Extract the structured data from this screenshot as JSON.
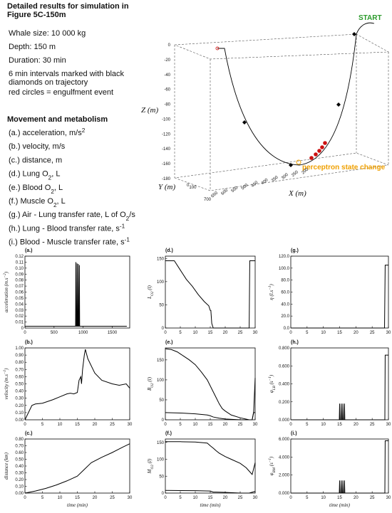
{
  "header": {
    "title_lines": [
      "Detailed results for simulation in",
      "Figure 5C-150m"
    ]
  },
  "info_lines": [
    "Whale size: 10 000 kg",
    "Depth: 150 m",
    "Duration: 30 min",
    "6 min intervals marked with black",
    "diamonds on trajectory",
    "red circles = engulfment event"
  ],
  "legend": {
    "heading": "Movement and metabolism",
    "items": [
      [
        {
          "t": "(a.) acceleration, m/s"
        },
        {
          "t": "2",
          "s": "sup"
        }
      ],
      [
        {
          "t": "(b.) velocity, m/s"
        }
      ],
      [
        {
          "t": "(c.) distance, m"
        }
      ],
      [
        {
          "t": "(d.) Lung O"
        },
        {
          "t": "2",
          "s": "sub"
        },
        {
          "t": ", L"
        }
      ],
      [
        {
          "t": "(e.) Blood O"
        },
        {
          "t": "2",
          "s": "sub"
        },
        {
          "t": ", L"
        }
      ],
      [
        {
          "t": "(f.) Muscle O"
        },
        {
          "t": "2",
          "s": "sub"
        },
        {
          "t": ", L"
        }
      ],
      [
        {
          "t": "(g.) Air - Lung transfer rate, L of O"
        },
        {
          "t": "2",
          "s": "sub"
        },
        {
          "t": "/s"
        }
      ],
      [
        {
          "t": "(h.) Lung - Blood transfer rate, s"
        },
        {
          "t": "-1",
          "s": "sup"
        }
      ],
      [
        {
          "t": "(i.) Blood - Muscle transfer rate, s"
        },
        {
          "t": "-1",
          "s": "sup"
        }
      ]
    ]
  },
  "trajectory_plot": {
    "zlabel": "Z (m)",
    "ylabel": "Y (m)",
    "xlabel": "X (m)",
    "zticks": [
      0,
      -20,
      -40,
      -60,
      -80,
      -100,
      -120,
      -140,
      -160,
      -180
    ],
    "xticks": [
      650,
      600,
      550,
      500,
      450,
      400,
      350,
      300,
      250,
      200
    ],
    "yticks": [
      0,
      100,
      700
    ],
    "start_label": "START",
    "state_label": "perceptron state change"
  },
  "chart_data": [
    {
      "type": "line",
      "label": "(a.)",
      "ylabel": [
        {
          "t": "acceleration (m.s"
        },
        {
          "t": "−2",
          "s": "sup"
        },
        {
          "t": ")"
        }
      ],
      "xlim": [
        0,
        1800
      ],
      "xticks": [
        0,
        500,
        1000,
        1500
      ],
      "ylim": [
        0,
        0.12
      ],
      "yticks": [
        0,
        0.01,
        0.02,
        0.03,
        0.04,
        0.05,
        0.06,
        0.07,
        0.08,
        0.09,
        {
          "value": 0.1,
          "label": "0.10"
        },
        0.11,
        0.12
      ],
      "series": [
        {
          "color": "#000000",
          "x": [
            0,
            870,
            875,
            880,
            890,
            895,
            900,
            910,
            915,
            920,
            930,
            935,
            940,
            950,
            1750
          ],
          "values": [
            0.003,
            0.003,
            0.11,
            0.003,
            0.003,
            0.108,
            0.003,
            0.003,
            0.107,
            0.003,
            0.003,
            0.105,
            0.003,
            0.003,
            0.003
          ]
        }
      ]
    },
    {
      "type": "line",
      "label": "(b.)",
      "ylabel": [
        {
          "t": "velocity (m.s"
        },
        {
          "t": "−1",
          "s": "sup"
        },
        {
          "t": ")"
        }
      ],
      "xlim": [
        0,
        30
      ],
      "xticks": [
        0,
        5,
        10,
        15,
        20,
        25,
        30
      ],
      "ylim": [
        0,
        1
      ],
      "yticks": [
        {
          "value": 0,
          "label": "0.00"
        },
        {
          "value": 0.1,
          "label": "0.10"
        },
        {
          "value": 0.2,
          "label": "0.20"
        },
        {
          "value": 0.3,
          "label": "0.30"
        },
        {
          "value": 0.4,
          "label": "0.40"
        },
        {
          "value": 0.5,
          "label": "0.50"
        },
        {
          "value": 0.6,
          "label": "0.60"
        },
        {
          "value": 0.7,
          "label": "0.70"
        },
        {
          "value": 0.8,
          "label": "0.80"
        },
        {
          "value": 0.9,
          "label": "0.90"
        },
        {
          "value": 1,
          "label": "1.00"
        }
      ],
      "series": [
        {
          "color": "#000000",
          "x": [
            0,
            1,
            2,
            3,
            5,
            8,
            10,
            12,
            13,
            14,
            15,
            15.5,
            16,
            16.2,
            16.5,
            17,
            17.3,
            18,
            20,
            22,
            25,
            27,
            29,
            30
          ],
          "values": [
            0,
            0.1,
            0.2,
            0.22,
            0.23,
            0.28,
            0.32,
            0.36,
            0.37,
            0.36,
            0.38,
            0.55,
            0.6,
            0.5,
            0.7,
            0.9,
            0.98,
            0.85,
            0.65,
            0.55,
            0.5,
            0.48,
            0.5,
            0.44
          ]
        }
      ]
    },
    {
      "type": "line",
      "label": "(c.)",
      "ylabel": [
        {
          "t": "distance (km)"
        }
      ],
      "xlabel": "time (min)",
      "xlim": [
        0,
        30
      ],
      "xticks": [
        0,
        5,
        10,
        15,
        20,
        25,
        30
      ],
      "ylim": [
        0,
        0.8
      ],
      "yticks": [
        {
          "value": 0,
          "label": "0.00"
        },
        {
          "value": 0.1,
          "label": "0.10"
        },
        {
          "value": 0.2,
          "label": "0.20"
        },
        {
          "value": 0.3,
          "label": "0.30"
        },
        {
          "value": 0.4,
          "label": "0.40"
        },
        {
          "value": 0.5,
          "label": "0.50"
        },
        {
          "value": 0.6,
          "label": "0.60"
        },
        {
          "value": 0.7,
          "label": "0.70"
        },
        {
          "value": 0.8,
          "label": "0.80"
        }
      ],
      "series": [
        {
          "color": "#000000",
          "x": [
            0,
            3,
            6,
            9,
            12,
            15,
            17,
            19,
            22,
            25,
            28,
            30
          ],
          "values": [
            0,
            0.03,
            0.07,
            0.12,
            0.18,
            0.25,
            0.35,
            0.45,
            0.53,
            0.6,
            0.68,
            0.73
          ]
        }
      ]
    },
    {
      "type": "line",
      "label": "(d.)",
      "ylabel": [
        {
          "t": "L"
        },
        {
          "t": "O2",
          "s": "sub"
        },
        {
          "t": " (l)"
        }
      ],
      "xlim": [
        0,
        30
      ],
      "xticks": [
        0,
        5,
        10,
        15,
        20,
        25,
        30
      ],
      "ylim": [
        0,
        155
      ],
      "yticks": [
        0,
        50,
        100,
        150
      ],
      "series": [
        {
          "color": "#000000",
          "x": [
            0,
            3,
            5,
            7,
            9,
            11,
            13,
            14.5,
            15,
            15.2,
            15.5,
            16,
            27.8,
            28,
            28.2,
            30
          ],
          "values": [
            145,
            145,
            125,
            105,
            90,
            72,
            57,
            48,
            38,
            38,
            10,
            0,
            0,
            0,
            145,
            145
          ]
        }
      ]
    },
    {
      "type": "line",
      "label": "(e.)",
      "ylabel": [
        {
          "t": "B"
        },
        {
          "t": "O2",
          "s": "sub"
        },
        {
          "t": " (l)"
        }
      ],
      "xlim": [
        0,
        30
      ],
      "xticks": [
        0,
        5,
        10,
        15,
        20,
        25,
        30
      ],
      "ylim": [
        0,
        180
      ],
      "yticks": [
        0,
        50,
        100,
        150
      ],
      "series": [
        {
          "color": "#000000",
          "x": [
            0,
            2,
            4,
            6,
            8,
            10,
            12,
            14,
            16,
            17,
            18,
            19,
            20,
            22,
            25,
            28,
            29,
            29.5,
            30
          ],
          "values": [
            178,
            176,
            170,
            160,
            150,
            138,
            120,
            100,
            70,
            55,
            40,
            28,
            22,
            12,
            5,
            0,
            0,
            20,
            105
          ]
        },
        {
          "color": "#000000",
          "x": [
            0,
            5,
            10,
            14,
            15,
            16,
            18,
            20,
            25,
            28,
            29,
            29.5,
            30
          ],
          "values": [
            18,
            17,
            15,
            12,
            10,
            7,
            4,
            2,
            0,
            0,
            0,
            18,
            18
          ]
        }
      ]
    },
    {
      "type": "line",
      "label": "(f.)",
      "ylabel": [
        {
          "t": "M"
        },
        {
          "t": "O2",
          "s": "sub"
        },
        {
          "t": " (l)"
        }
      ],
      "xlabel": "time (min)",
      "xlim": [
        0,
        30
      ],
      "xticks": [
        0,
        5,
        10,
        15,
        20,
        25,
        30
      ],
      "ylim": [
        0,
        160
      ],
      "yticks": [
        0,
        50,
        100,
        150
      ],
      "series": [
        {
          "color": "#000000",
          "x": [
            0,
            5,
            10,
            14,
            15,
            16,
            17,
            18,
            20,
            22,
            25,
            27,
            28,
            29,
            30
          ],
          "values": [
            152,
            152,
            151,
            148,
            140,
            133,
            125,
            118,
            108,
            100,
            88,
            75,
            65,
            55,
            90
          ]
        },
        {
          "color": "#000000",
          "x": [
            0,
            10,
            15,
            16,
            17,
            20,
            25,
            28,
            30
          ],
          "values": [
            8,
            7,
            6,
            3,
            3,
            2,
            0,
            0,
            5
          ]
        }
      ]
    },
    {
      "type": "line",
      "label": "(g.)",
      "ylabel": [
        {
          "t": "η (l.s"
        },
        {
          "t": "−1",
          "s": "sup"
        },
        {
          "t": ")"
        }
      ],
      "xlim": [
        0,
        30
      ],
      "xticks": [
        0,
        5,
        10,
        15,
        20,
        25,
        30
      ],
      "ylim": [
        0,
        120
      ],
      "yticks": [
        {
          "value": 0,
          "label": "0.0"
        },
        {
          "value": 20,
          "label": "20.0"
        },
        {
          "value": 40,
          "label": "40.0"
        },
        {
          "value": 60,
          "label": "60.0"
        },
        {
          "value": 80,
          "label": "80.0"
        },
        {
          "value": 100,
          "label": "100.0"
        },
        {
          "value": 120,
          "label": "120.0"
        }
      ],
      "series": [
        {
          "color": "#000000",
          "x": [
            0,
            28.8,
            29,
            30
          ],
          "values": [
            0,
            0,
            105,
            105
          ]
        }
      ]
    },
    {
      "type": "line",
      "label": "(h.)",
      "ylabel": [
        {
          "t": "φ"
        },
        {
          "t": "LB",
          "s": "sub"
        },
        {
          "t": " (s"
        },
        {
          "t": "−1",
          "s": "sup"
        },
        {
          "t": ")"
        }
      ],
      "xlim": [
        0,
        30
      ],
      "xticks": [
        0,
        5,
        10,
        15,
        20,
        25,
        30
      ],
      "ylim": [
        0,
        0.8
      ],
      "yticks": [
        {
          "value": 0,
          "label": "0.000"
        },
        {
          "value": 0.2,
          "label": "0.200"
        },
        {
          "value": 0.4,
          "label": "0.400"
        },
        {
          "value": 0.6,
          "label": "0.600"
        },
        {
          "value": 0.8,
          "label": "0.800"
        }
      ],
      "series": [
        {
          "color": "#000000",
          "x": [
            0,
            14.9,
            15,
            15.1,
            15.4,
            15.5,
            15.6,
            15.9,
            16,
            16.1,
            16.4,
            16.5,
            16.6,
            28.9,
            29,
            30
          ],
          "values": [
            0,
            0,
            0.18,
            0,
            0,
            0.18,
            0,
            0,
            0.18,
            0,
            0,
            0.18,
            0,
            0,
            0.72,
            0.72
          ]
        }
      ]
    },
    {
      "type": "line",
      "label": "(i.)",
      "ylabel": [
        {
          "t": "φ"
        },
        {
          "t": "BM",
          "s": "sub"
        },
        {
          "t": " (s"
        },
        {
          "t": "−1",
          "s": "sup"
        },
        {
          "t": ")"
        }
      ],
      "xlabel": "time (min)",
      "xlim": [
        0,
        30
      ],
      "xticks": [
        0,
        5,
        10,
        15,
        20,
        25,
        30
      ],
      "ylim": [
        0,
        6
      ],
      "yticks": [
        {
          "value": 0,
          "label": "0.000"
        },
        {
          "value": 2,
          "label": "2.000"
        },
        {
          "value": 4,
          "label": "4.000"
        },
        {
          "value": 6,
          "label": "6.000"
        }
      ],
      "series": [
        {
          "color": "#000000",
          "x": [
            0,
            14.9,
            15,
            15.1,
            15.4,
            15.5,
            15.6,
            15.9,
            16,
            16.1,
            16.4,
            16.5,
            16.6,
            28.9,
            29,
            30
          ],
          "values": [
            0,
            0,
            1.4,
            0,
            0,
            1.4,
            0,
            0,
            1.4,
            0,
            0,
            1.4,
            0,
            0,
            5.8,
            5.8
          ]
        }
      ]
    }
  ]
}
